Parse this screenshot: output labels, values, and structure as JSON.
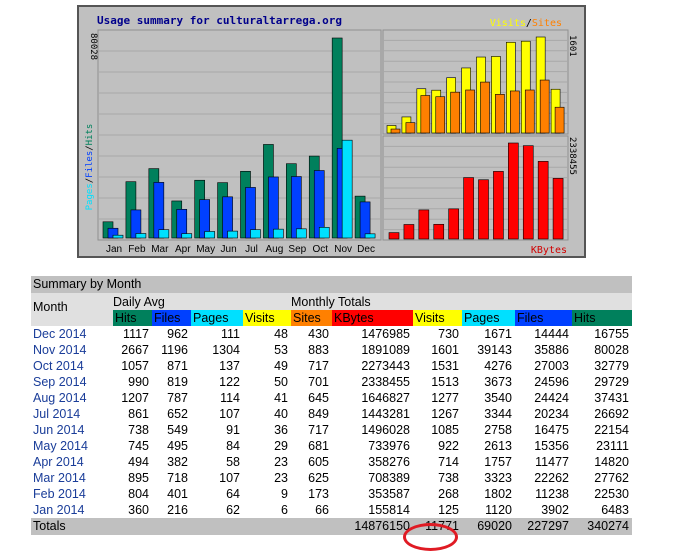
{
  "chart": {
    "title": "Usage summary for culturaltarrega.org",
    "left_axis_max": "80028",
    "right_top_axis_max": "1601",
    "right_bottom_axis_max": "2338455",
    "left_axis_label": {
      "pages": "Pages",
      "files": "Files",
      "hits": "Hits",
      "sep": "/"
    },
    "legend_visits": "Visits",
    "legend_sep": "/",
    "legend_sites": "Sites",
    "legend_kbytes": "KBytes",
    "colors": {
      "hits": "#00805c",
      "files": "#0040ff",
      "pages": "#00e0ff",
      "visits": "#ffff00",
      "sites": "#ff8000",
      "kbytes": "#ff0000",
      "title": "#00008b",
      "background": "#c0c0c0"
    }
  },
  "chart_data": [
    {
      "type": "bar",
      "title": "Usage summary for culturaltarrega.org",
      "categories": [
        "Jan",
        "Feb",
        "Mar",
        "Apr",
        "May",
        "Jun",
        "Jul",
        "Aug",
        "Sep",
        "Oct",
        "Nov",
        "Dec"
      ],
      "series": [
        {
          "name": "Hits",
          "values": [
            6483,
            22530,
            27762,
            14820,
            23111,
            22154,
            26692,
            37431,
            29729,
            32779,
            80028,
            16755
          ]
        },
        {
          "name": "Files",
          "values": [
            3902,
            11238,
            22262,
            11477,
            15356,
            16475,
            20234,
            24424,
            24596,
            27003,
            35886,
            14444
          ]
        },
        {
          "name": "Pages",
          "values": [
            1120,
            1802,
            3323,
            1757,
            2613,
            2758,
            3344,
            3540,
            3673,
            4276,
            39143,
            1671
          ]
        }
      ],
      "ylim": [
        0,
        80028
      ]
    },
    {
      "type": "bar",
      "categories": [
        "Jan",
        "Feb",
        "Mar",
        "Apr",
        "May",
        "Jun",
        "Jul",
        "Aug",
        "Sep",
        "Oct",
        "Nov",
        "Dec"
      ],
      "series": [
        {
          "name": "Visits",
          "values": [
            125,
            268,
            738,
            714,
            922,
            1085,
            1267,
            1277,
            1513,
            1531,
            1601,
            730
          ]
        },
        {
          "name": "Sites",
          "values": [
            66,
            173,
            625,
            605,
            681,
            717,
            849,
            645,
            701,
            717,
            883,
            430
          ]
        }
      ],
      "ylim": [
        0,
        1601
      ]
    },
    {
      "type": "bar",
      "categories": [
        "Jan",
        "Feb",
        "Mar",
        "Apr",
        "May",
        "Jun",
        "Jul",
        "Aug",
        "Sep",
        "Oct",
        "Nov",
        "Dec"
      ],
      "series": [
        {
          "name": "KBytes",
          "values": [
            155814,
            353587,
            708389,
            358276,
            733976,
            1496028,
            1443281,
            1646827,
            2338455,
            2273443,
            1891089,
            1476985
          ]
        }
      ],
      "ylim": [
        0,
        2338455
      ]
    },
    {
      "type": "table",
      "title": "Summary by Month",
      "columns": [
        "Month",
        "Hits",
        "Files",
        "Pages",
        "Visits",
        "Sites",
        "KBytes",
        "Visits",
        "Pages",
        "Files",
        "Hits"
      ],
      "rows": [
        [
          "Dec 2014",
          "1117",
          "962",
          "111",
          "48",
          "430",
          "1476985",
          "730",
          "1671",
          "14444",
          "16755"
        ],
        [
          "Nov 2014",
          "2667",
          "1196",
          "1304",
          "53",
          "883",
          "1891089",
          "1601",
          "39143",
          "35886",
          "80028"
        ],
        [
          "Oct 2014",
          "1057",
          "871",
          "137",
          "49",
          "717",
          "2273443",
          "1531",
          "4276",
          "27003",
          "32779"
        ],
        [
          "Sep 2014",
          "990",
          "819",
          "122",
          "50",
          "701",
          "2338455",
          "1513",
          "3673",
          "24596",
          "29729"
        ],
        [
          "Aug 2014",
          "1207",
          "787",
          "114",
          "41",
          "645",
          "1646827",
          "1277",
          "3540",
          "24424",
          "37431"
        ],
        [
          "Jul 2014",
          "861",
          "652",
          "107",
          "40",
          "849",
          "1443281",
          "1267",
          "3344",
          "20234",
          "26692"
        ],
        [
          "Jun 2014",
          "738",
          "549",
          "91",
          "36",
          "717",
          "1496028",
          "1085",
          "2758",
          "16475",
          "22154"
        ],
        [
          "May 2014",
          "745",
          "495",
          "84",
          "29",
          "681",
          "733976",
          "922",
          "2613",
          "15356",
          "23111"
        ],
        [
          "Apr 2014",
          "494",
          "382",
          "58",
          "23",
          "605",
          "358276",
          "714",
          "1757",
          "11477",
          "14820"
        ],
        [
          "Mar 2014",
          "895",
          "718",
          "107",
          "23",
          "625",
          "708389",
          "738",
          "3323",
          "22262",
          "27762"
        ],
        [
          "Feb 2014",
          "804",
          "401",
          "64",
          "9",
          "173",
          "353587",
          "268",
          "1802",
          "11238",
          "22530"
        ],
        [
          "Jan 2014",
          "360",
          "216",
          "62",
          "6",
          "66",
          "155814",
          "125",
          "1120",
          "3902",
          "6483"
        ]
      ],
      "totals": [
        "Totals",
        "",
        "",
        "",
        "",
        "",
        "14876150",
        "11771",
        "69020",
        "227297",
        "340274"
      ]
    }
  ],
  "summary": {
    "title": "Summary by Month",
    "month_header": "Month",
    "daily_avg_header": "Daily Avg",
    "monthly_totals_header": "Monthly Totals",
    "col_headers": [
      "Hits",
      "Files",
      "Pages",
      "Visits",
      "Sites",
      "KBytes",
      "Visits",
      "Pages",
      "Files",
      "Hits"
    ],
    "col_colors": [
      "#00805c",
      "#0040ff",
      "#00e0ff",
      "#ffff00",
      "#ff8000",
      "#ff0000",
      "#ffff00",
      "#00e0ff",
      "#0040ff",
      "#00805c"
    ],
    "totals_label": "Totals"
  }
}
